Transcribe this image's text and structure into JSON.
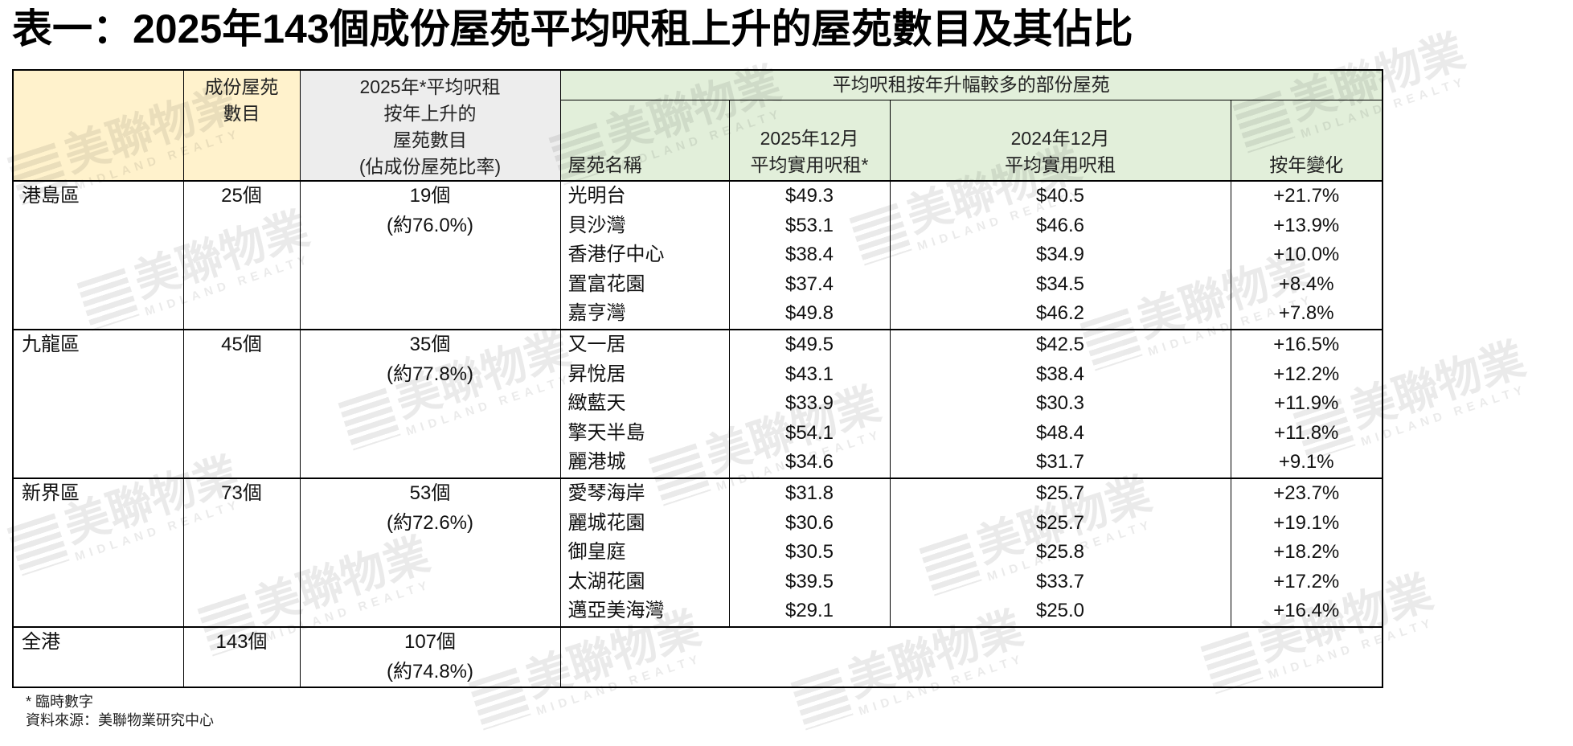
{
  "title": "表一：2025年143個成份屋苑平均呎租上升的屋苑數目及其佔比",
  "table": {
    "header": {
      "estate_count": [
        "成份屋苑",
        "數目"
      ],
      "rising_count": [
        "2025年*平均呎租",
        "按年上升的",
        "屋苑數目",
        "(佔成份屋苑比率)"
      ],
      "group_title": "平均呎租按年升幅較多的部份屋苑",
      "estate_name": "屋苑名稱",
      "rent_2025": [
        "2025年12月",
        "平均實用呎租*"
      ],
      "rent_2024": [
        "2024年12月",
        "平均實用呎租"
      ],
      "yoy_change": "按年變化"
    },
    "sections": [
      {
        "region": "港島區",
        "estate_count": "25個",
        "rising_count": "19個",
        "rising_share": "(約76.0%)",
        "estates": [
          {
            "name": "光明台",
            "rent_2025": "$49.3",
            "rent_2024": "$40.5",
            "change": "+21.7%"
          },
          {
            "name": "貝沙灣",
            "rent_2025": "$53.1",
            "rent_2024": "$46.6",
            "change": "+13.9%"
          },
          {
            "name": "香港仔中心",
            "rent_2025": "$38.4",
            "rent_2024": "$34.9",
            "change": "+10.0%"
          },
          {
            "name": "置富花園",
            "rent_2025": "$37.4",
            "rent_2024": "$34.5",
            "change": "+8.4%"
          },
          {
            "name": "嘉亨灣",
            "rent_2025": "$49.8",
            "rent_2024": "$46.2",
            "change": "+7.8%"
          }
        ]
      },
      {
        "region": "九龍區",
        "estate_count": "45個",
        "rising_count": "35個",
        "rising_share": "(約77.8%)",
        "estates": [
          {
            "name": "又一居",
            "rent_2025": "$49.5",
            "rent_2024": "$42.5",
            "change": "+16.5%"
          },
          {
            "name": "昇悅居",
            "rent_2025": "$43.1",
            "rent_2024": "$38.4",
            "change": "+12.2%"
          },
          {
            "name": "緻藍天",
            "rent_2025": "$33.9",
            "rent_2024": "$30.3",
            "change": "+11.9%"
          },
          {
            "name": "擎天半島",
            "rent_2025": "$54.1",
            "rent_2024": "$48.4",
            "change": "+11.8%"
          },
          {
            "name": "麗港城",
            "rent_2025": "$34.6",
            "rent_2024": "$31.7",
            "change": "+9.1%"
          }
        ]
      },
      {
        "region": "新界區",
        "estate_count": "73個",
        "rising_count": "53個",
        "rising_share": "(約72.6%)",
        "estates": [
          {
            "name": "愛琴海岸",
            "rent_2025": "$31.8",
            "rent_2024": "$25.7",
            "change": "+23.7%"
          },
          {
            "name": "麗城花園",
            "rent_2025": "$30.6",
            "rent_2024": "$25.7",
            "change": "+19.1%"
          },
          {
            "name": "御皇庭",
            "rent_2025": "$30.5",
            "rent_2024": "$25.8",
            "change": "+18.2%"
          },
          {
            "name": "太湖花園",
            "rent_2025": "$39.5",
            "rent_2024": "$33.7",
            "change": "+17.2%"
          },
          {
            "name": "邁亞美海灣",
            "rent_2025": "$29.1",
            "rent_2024": "$25.0",
            "change": "+16.4%"
          }
        ]
      }
    ],
    "total": {
      "region": "全港",
      "estate_count": "143個",
      "rising_count": "107個",
      "rising_share": "(約74.8%)"
    }
  },
  "footnotes": [
    "* 臨時數字",
    "資料來源：美聯物業研究中心"
  ],
  "colors": {
    "header_region": "#FFF2CC",
    "header_rising": "#EDEDED",
    "header_group": "#E2EFDA"
  },
  "watermark": {
    "brand": "美聯物業",
    "brand_en": "MIDLAND REALTY",
    "icon": "midland-stripes-icon"
  }
}
